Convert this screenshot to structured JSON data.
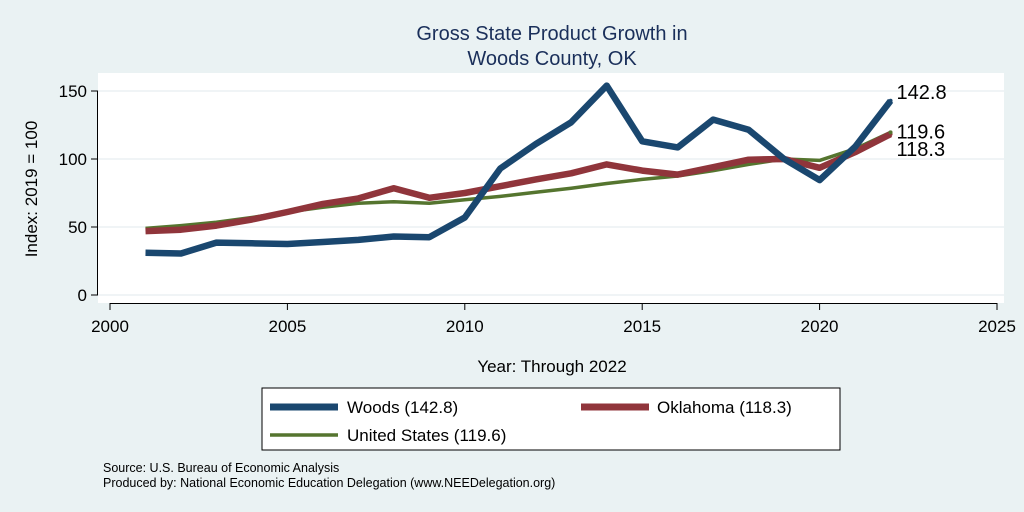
{
  "chart_data": {
    "type": "line",
    "title": [
      "Gross State Product Growth in",
      "Woods County, OK"
    ],
    "xlabel": "Year: Through 2022",
    "ylabel": "Index: 2019 = 100",
    "xlim": [
      2000,
      2025
    ],
    "ylim": [
      0,
      160
    ],
    "xticks": [
      2000,
      2005,
      2010,
      2015,
      2020,
      2025
    ],
    "yticks": [
      0,
      50,
      100,
      150
    ],
    "grid": true,
    "x": [
      2001,
      2002,
      2003,
      2004,
      2005,
      2006,
      2007,
      2008,
      2009,
      2010,
      2011,
      2012,
      2013,
      2014,
      2015,
      2016,
      2017,
      2018,
      2019,
      2020,
      2021,
      2022
    ],
    "series": [
      {
        "name": "Woods",
        "color": "#1a476f",
        "values": [
          31,
          30.5,
          38.5,
          38,
          37.5,
          39,
          40.5,
          43,
          42.5,
          57,
          93,
          111,
          127,
          154,
          113,
          108.5,
          129,
          121.5,
          100,
          84.5,
          109,
          142.8
        ],
        "end_label": "142.8",
        "legend_label": "Woods  (142.8)"
      },
      {
        "name": "Oklahoma",
        "color": "#90353b",
        "values": [
          47,
          48,
          51,
          55.5,
          61,
          67,
          71,
          78.5,
          71.5,
          75,
          80,
          85,
          89.5,
          96,
          91.5,
          88.5,
          94,
          99.5,
          100,
          93.5,
          105,
          118.3
        ],
        "end_label": "118.3",
        "legend_label": "Oklahoma (118.3)"
      },
      {
        "name": "United States",
        "color": "#55752f",
        "values": [
          49,
          51,
          53.5,
          57,
          61,
          64.5,
          67.5,
          68.5,
          67.5,
          70,
          72.5,
          75.5,
          78.5,
          82,
          85,
          87.5,
          91.5,
          96,
          100,
          99,
          107.5,
          119.6
        ],
        "end_label": "119.6",
        "legend_label": "United States (119.6)"
      }
    ],
    "legend_position": "bottom"
  },
  "notes": {
    "source": "Source: U.S. Bureau of Economic Analysis",
    "produced_by": "Produced by: National Economic Education Delegation (www.NEEDelegation.org)"
  }
}
